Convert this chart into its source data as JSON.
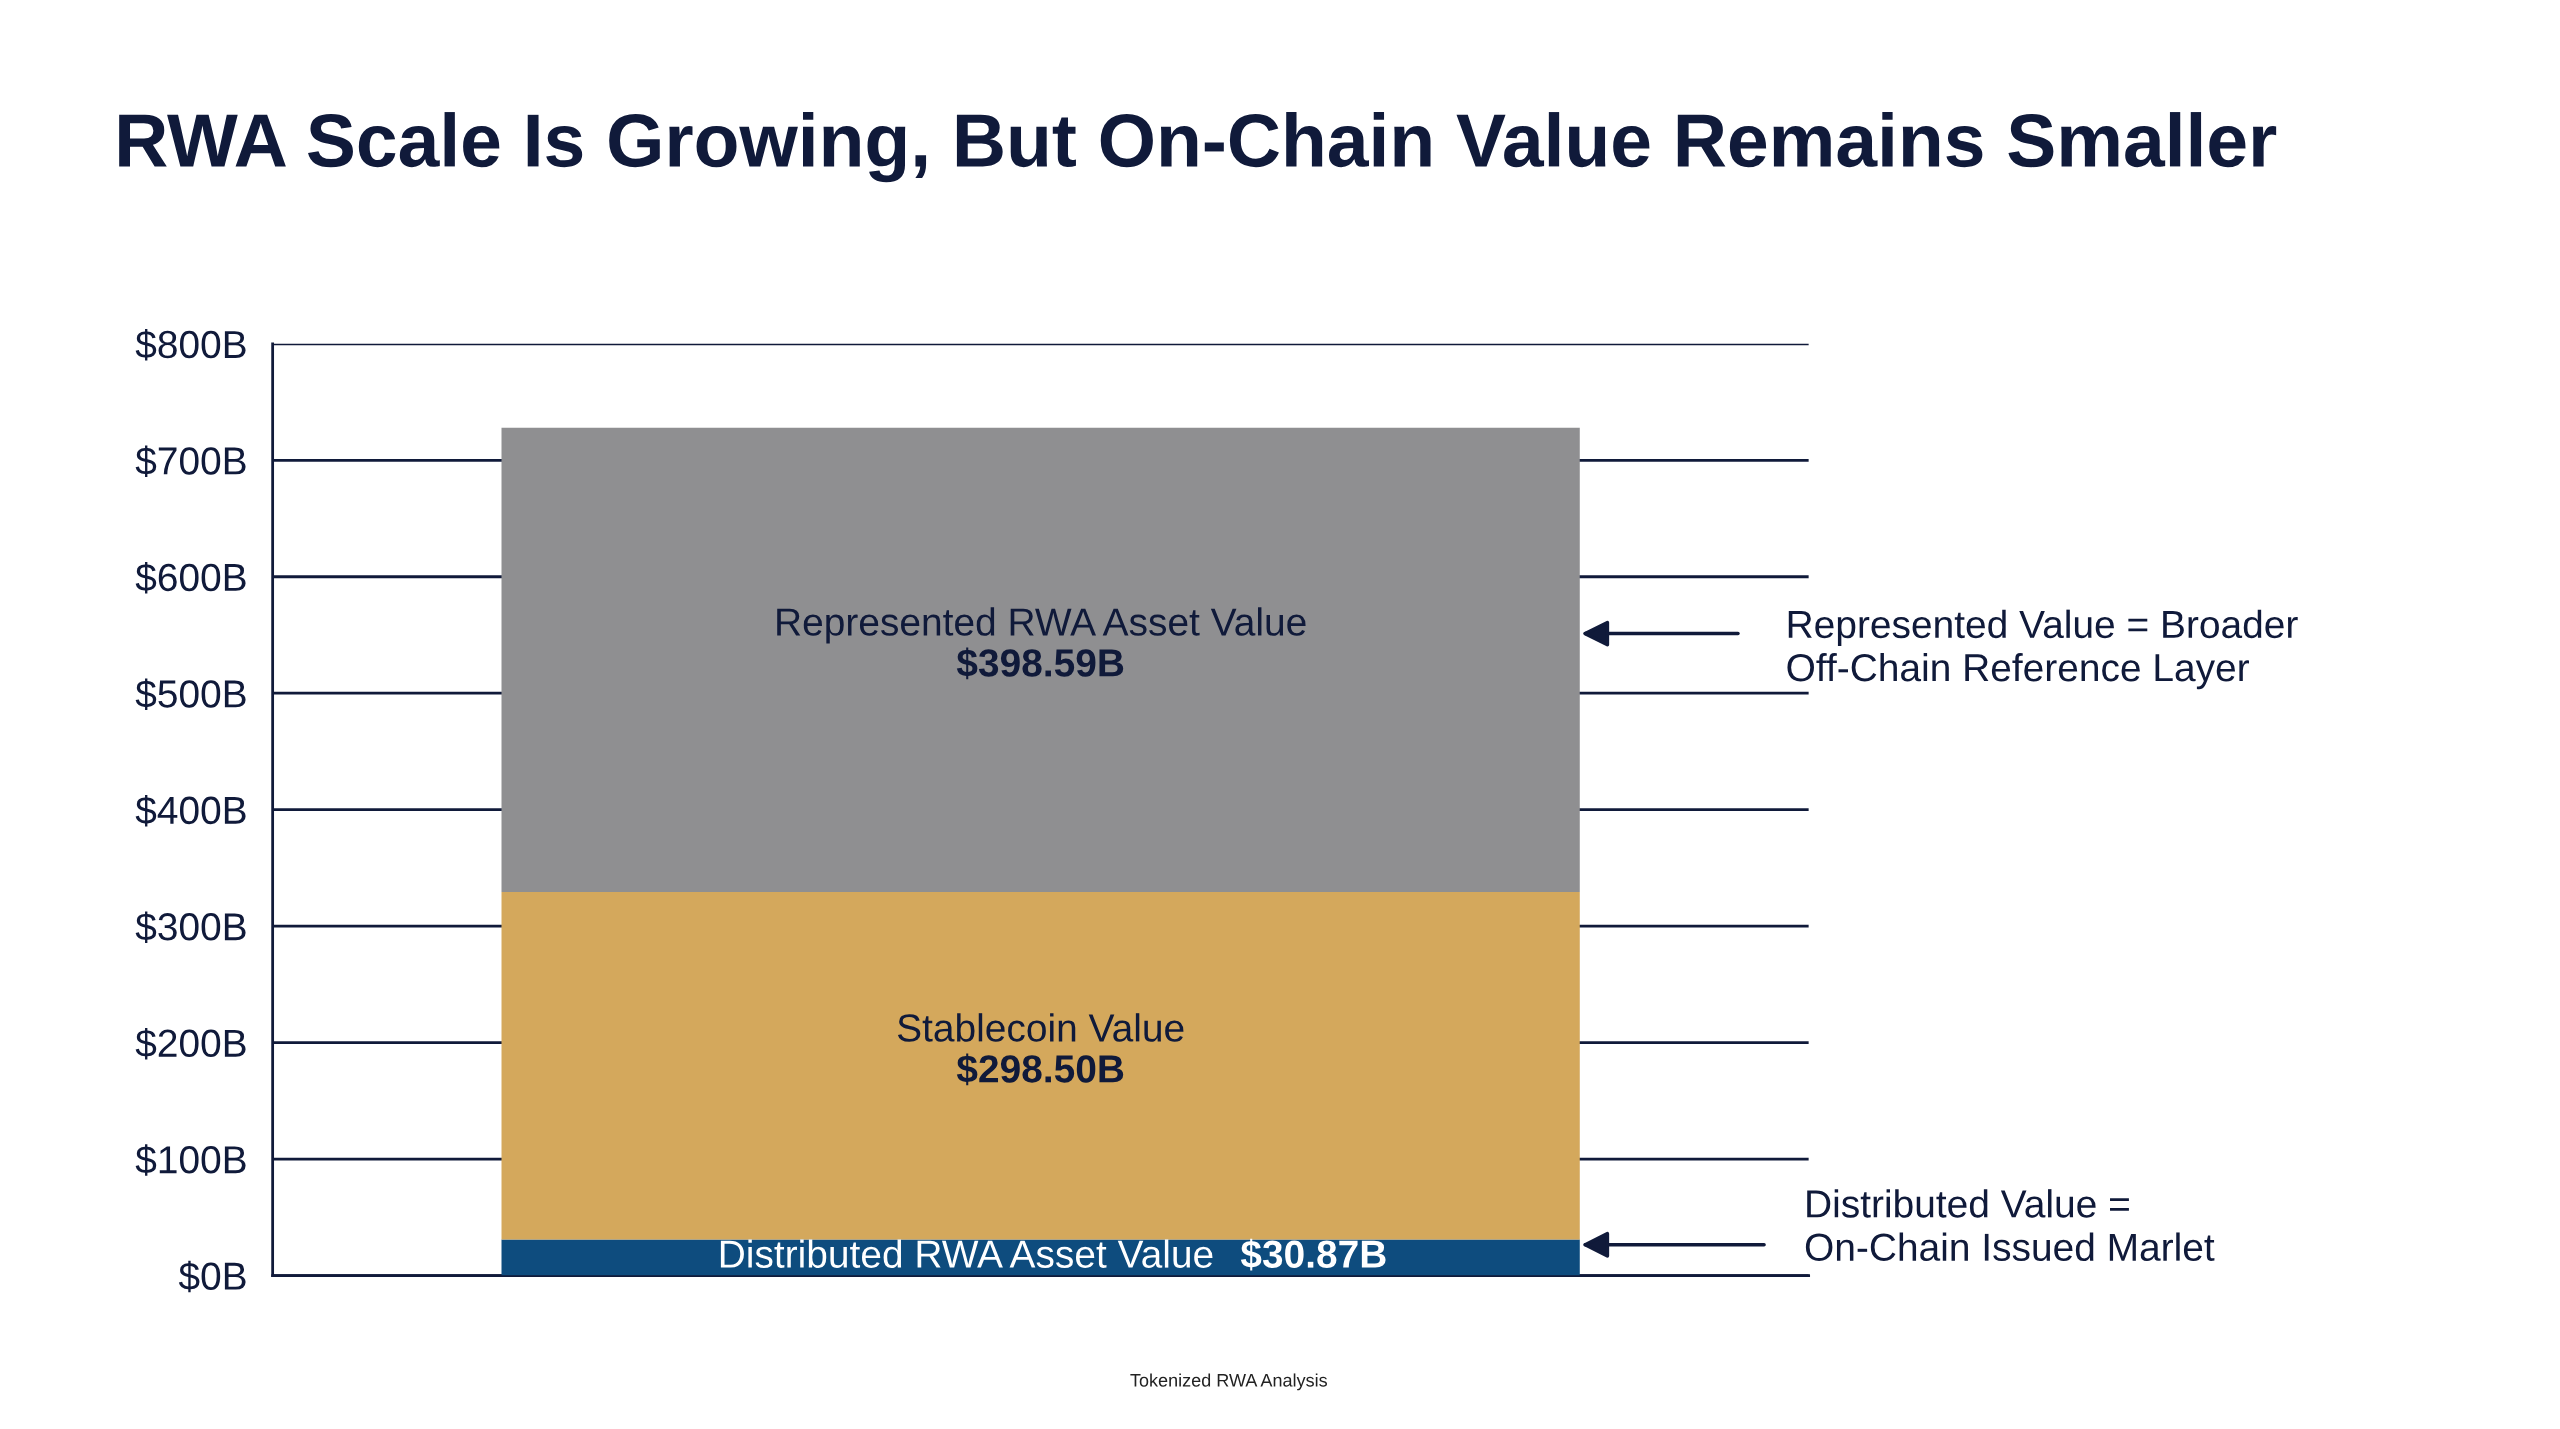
{
  "chart_data": {
    "type": "bar",
    "title": "RWA Scale Is Growing, But On-Chain Value Remains Smaller",
    "categories": [
      null
    ],
    "stacked": true,
    "series": [
      {
        "name": "Distributed RWA Asset Value",
        "color": "#0e4c7e",
        "values": [
          30.87
        ],
        "value_labels": [
          "$30.87B"
        ]
      },
      {
        "name": "Stablecoin Value",
        "color": "#d4a85c",
        "values": [
          298.5
        ],
        "value_labels": [
          "$298.50B"
        ]
      },
      {
        "name": "Represented RWA Asset Value",
        "color": "#8f8f91",
        "values": [
          398.59
        ],
        "value_labels": [
          "$398.59B"
        ]
      }
    ],
    "ylim": [
      0,
      800
    ],
    "yticks": [
      {
        "value": 0,
        "label": "$0B"
      },
      {
        "value": 100,
        "label": "$100B"
      },
      {
        "value": 200,
        "label": "$200B"
      },
      {
        "value": 300,
        "label": "$300B"
      },
      {
        "value": 400,
        "label": "$400B"
      },
      {
        "value": 500,
        "label": "$500B"
      },
      {
        "value": 600,
        "label": "$600B"
      },
      {
        "value": 700,
        "label": "$700B"
      },
      {
        "value": 800,
        "label": "$800B"
      }
    ],
    "grid": "y",
    "legend": false,
    "tick_labels": "y",
    "annotations": [
      "Represented Value = Broader\nOff-Chain Reference Layer",
      "Distributed Value =\nOn-Chain Issued Marlet",
      "Tokenized RWA Analysis"
    ]
  }
}
